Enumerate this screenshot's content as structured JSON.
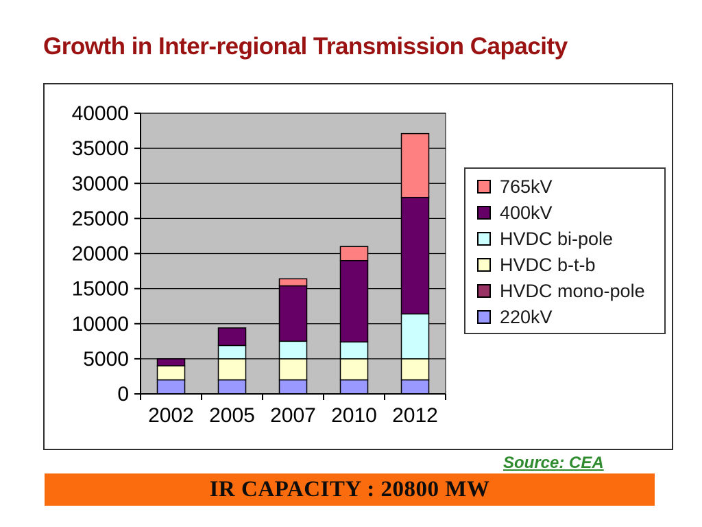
{
  "slide": {
    "title": "Growth in Inter-regional Transmission Capacity",
    "source_note": "Source: CEA",
    "banner_text": "IR CAPACITY : 20800 MW"
  },
  "colors": {
    "title_red": "#9a1212",
    "source_green": "#2e8b2e",
    "banner_orange": "#fa6c0d",
    "banner_text": "#0d0d0d",
    "plot_background": "#c0c0c0",
    "axis_and_grid": "#000000",
    "frame_border": "#2e2e2e"
  },
  "chart_data": {
    "type": "bar",
    "stacked": true,
    "title": "",
    "xlabel": "",
    "ylabel": "",
    "categories": [
      "2002",
      "2005",
      "2007",
      "2010",
      "2012"
    ],
    "series": [
      {
        "name": "220kV",
        "color": "#9999FF",
        "values": [
          2000,
          2000,
          2000,
          2000,
          2000
        ]
      },
      {
        "name": "HVDC mono-pole",
        "color": "#993366",
        "values": [
          0,
          0,
          0,
          0,
          0
        ]
      },
      {
        "name": "HVDC b-t-b",
        "color": "#FFFFCC",
        "values": [
          2000,
          3000,
          3000,
          3000,
          3000
        ]
      },
      {
        "name": "HVDC bi-pole",
        "color": "#CCFFFF",
        "values": [
          0,
          1900,
          2500,
          2400,
          6400
        ]
      },
      {
        "name": "400kV",
        "color": "#660066",
        "values": [
          1000,
          2500,
          7900,
          11600,
          16600
        ]
      },
      {
        "name": "765kV",
        "color": "#FF8080",
        "values": [
          0,
          0,
          1000,
          2000,
          9100
        ]
      }
    ],
    "totals": [
      5000,
      9400,
      16400,
      21000,
      37100
    ],
    "ylim": [
      0,
      40000
    ],
    "ytick_step": 5000,
    "ytick_labels": [
      "40000",
      "35000",
      "30000",
      "25000",
      "20000",
      "15000",
      "10000",
      "5000",
      "0"
    ],
    "grid": true,
    "plot_bg": "#c0c0c0",
    "legend_position": "right",
    "legend_order": [
      "765kV",
      "400kV",
      "HVDC bi-pole",
      "HVDC b-t-b",
      "HVDC mono-pole",
      "220kV"
    ]
  }
}
